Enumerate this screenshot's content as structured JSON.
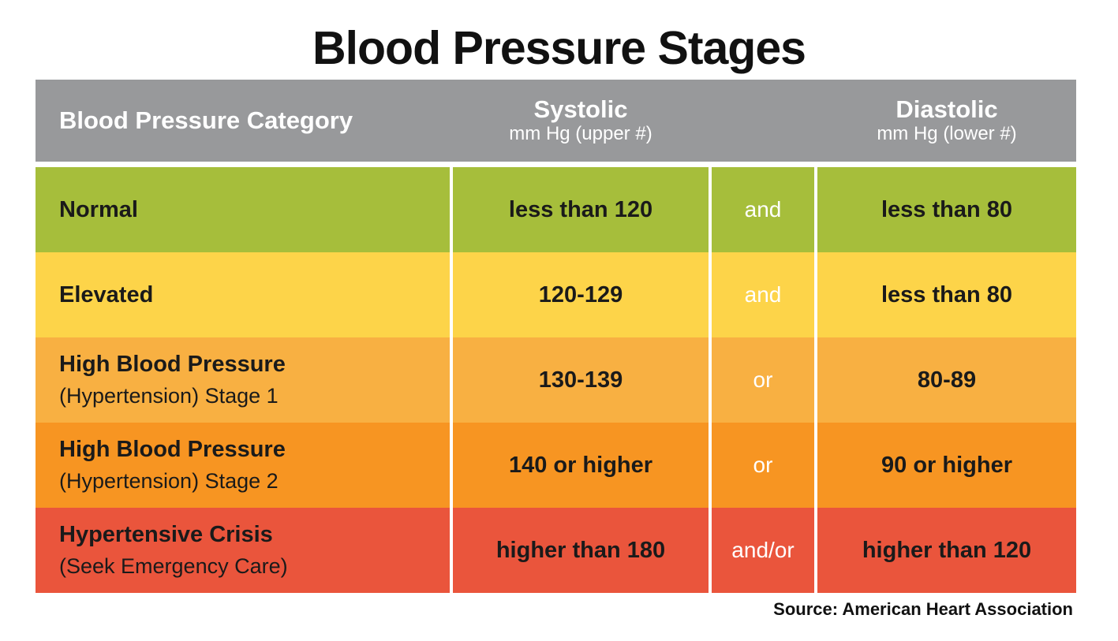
{
  "title": "Blood Pressure Stages",
  "source": "Source: American Heart Association",
  "colors": {
    "header_bg": "#98999b",
    "header_text": "#ffffff",
    "divider": "#ffffff",
    "text": "#1a1a1a",
    "normal_green": "#a6be3b",
    "elevated_yellow": "#fdd449",
    "stage1_light_orange": "#f8b042",
    "stage2_orange": "#f79522",
    "crisis_red": "#ea553c"
  },
  "table": {
    "header": {
      "category": "Blood Pressure Category",
      "systolic_label": "Systolic",
      "systolic_sub": "mm Hg (upper #)",
      "diastolic_label": "Diastolic",
      "diastolic_sub": "mm Hg (lower #)",
      "bg": "#98999b"
    },
    "rows": [
      {
        "category": "Normal",
        "subcategory": "",
        "systolic": "less than 120",
        "connector": "and",
        "diastolic": "less than 80",
        "bg": "#a6be3b"
      },
      {
        "category": "Elevated",
        "subcategory": "",
        "systolic": "120-129",
        "connector": "and",
        "diastolic": "less than 80",
        "bg": "#fdd449"
      },
      {
        "category": "High Blood Pressure",
        "subcategory": "(Hypertension) Stage 1",
        "systolic": "130-139",
        "connector": "or",
        "diastolic": "80-89",
        "bg": "#f8b042"
      },
      {
        "category": "High Blood Pressure",
        "subcategory": "(Hypertension) Stage 2",
        "systolic": "140 or higher",
        "connector": "or",
        "diastolic": "90 or higher",
        "bg": "#f79522"
      },
      {
        "category": "Hypertensive Crisis",
        "subcategory": "(Seek Emergency Care)",
        "systolic": "higher than 180",
        "connector": "and/or",
        "diastolic": "higher than 120",
        "bg": "#ea553c"
      }
    ]
  },
  "chart_data": {
    "type": "table",
    "title": "Blood Pressure Stages",
    "columns": [
      "Blood Pressure Category",
      "Systolic mm Hg (upper #)",
      "and/or",
      "Diastolic mm Hg (lower #)"
    ],
    "rows": [
      [
        "Normal",
        "less than 120",
        "and",
        "less than 80"
      ],
      [
        "Elevated",
        "120-129",
        "and",
        "less than 80"
      ],
      [
        "High Blood Pressure (Hypertension) Stage 1",
        "130-139",
        "or",
        "80-89"
      ],
      [
        "High Blood Pressure (Hypertension) Stage 2",
        "140 or higher",
        "or",
        "90 or higher"
      ],
      [
        "Hypertensive Crisis (Seek Emergency Care)",
        "higher than 180",
        "and/or",
        "higher than 120"
      ]
    ],
    "source": "Source: American Heart Association",
    "row_colors": [
      "#a6be3b",
      "#fdd449",
      "#f8b042",
      "#f79522",
      "#ea553c"
    ]
  }
}
